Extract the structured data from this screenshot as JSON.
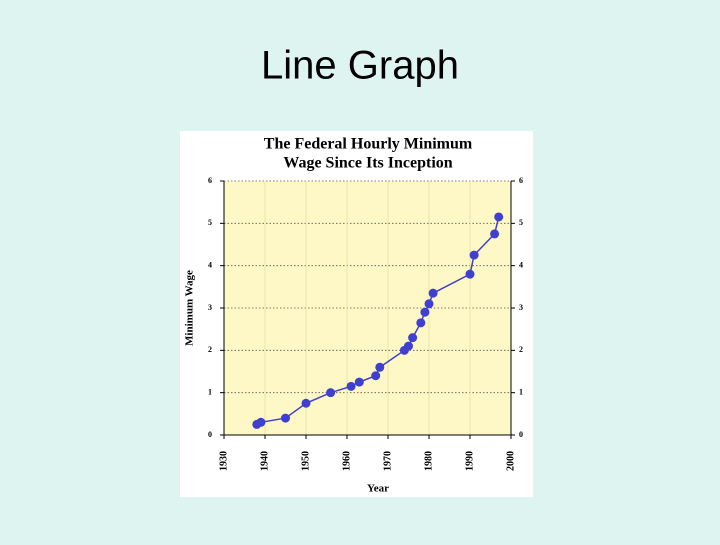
{
  "slide": {
    "title": "Line Graph"
  },
  "chart_data": {
    "type": "line",
    "title": [
      "The Federal Hourly Minimum",
      "Wage Since Its Inception"
    ],
    "x_label": "Year",
    "y_label": "Minimum Wage",
    "x": [
      1938,
      1939,
      1945,
      1950,
      1956,
      1961,
      1963,
      1967,
      1968,
      1974,
      1975,
      1976,
      1978,
      1979,
      1980,
      1981,
      1990,
      1991,
      1996,
      1997
    ],
    "series": [
      {
        "color": "#4040d0",
        "values": [
          0.25,
          0.3,
          0.4,
          0.75,
          1.0,
          1.15,
          1.25,
          1.4,
          1.6,
          2.0,
          2.1,
          2.3,
          2.65,
          2.9,
          3.1,
          3.35,
          3.8,
          4.25,
          4.75,
          5.15
        ]
      }
    ],
    "xlim": [
      1930,
      2000
    ],
    "xticks": [
      1930,
      1940,
      1950,
      1960,
      1970,
      1980,
      1990,
      2000
    ],
    "ylim": [
      0,
      6
    ],
    "yticks": [
      0,
      1,
      2,
      3,
      4,
      5,
      6
    ],
    "grid": true
  }
}
